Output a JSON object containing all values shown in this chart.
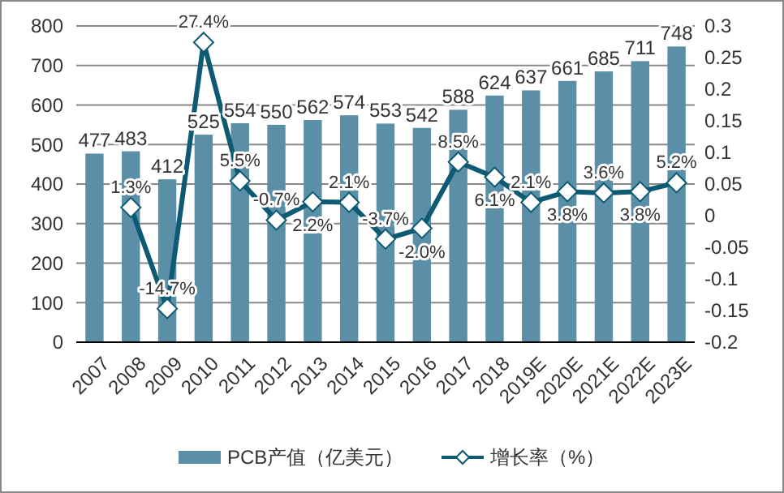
{
  "chart_data": {
    "type": "bar",
    "categories": [
      "2007",
      "2008",
      "2009",
      "2010",
      "2011",
      "2012",
      "2013",
      "2014",
      "2015",
      "2016",
      "2017",
      "2018",
      "2019E",
      "2020E",
      "2021E",
      "2022E",
      "2023E"
    ],
    "series": [
      {
        "name": "PCB产值（亿美元）",
        "color": "#5b8fa8",
        "values": [
          477,
          483,
          412,
          525,
          554,
          550,
          562,
          574,
          553,
          542,
          588,
          624,
          637,
          661,
          685,
          711,
          748
        ],
        "value_labels": [
          "477",
          "483",
          "412",
          "525",
          "554",
          "550",
          "562",
          "574",
          "553",
          "542",
          "588",
          "624",
          "637",
          "661",
          "685",
          "711",
          "748"
        ]
      },
      {
        "name": "增长率（%）",
        "type": "line",
        "axis": "y2",
        "color": "#0e5a73",
        "marker": "diamond",
        "values": [
          null,
          0.013,
          -0.147,
          0.274,
          0.055,
          -0.007,
          0.022,
          0.021,
          -0.037,
          -0.02,
          0.085,
          0.061,
          0.021,
          0.038,
          0.036,
          0.038,
          0.052
        ],
        "value_labels": [
          null,
          "1.3%",
          "-14.7%",
          "27.4%",
          "5.5%",
          "-0.7%",
          "2.2%",
          "2.1%",
          "-3.7%",
          "-2.0%",
          "8.5%",
          "6.1%",
          "2.1%",
          "3.8%",
          "3.6%",
          "3.8%",
          "5.2%"
        ]
      }
    ],
    "ylim": [
      0,
      800
    ],
    "yticks": [
      0,
      100,
      200,
      300,
      400,
      500,
      600,
      700,
      800
    ],
    "y2lim": [
      -0.2,
      0.3
    ],
    "y2ticks": [
      -0.2,
      -0.15,
      -0.1,
      -0.05,
      0,
      0.05,
      0.1,
      0.15,
      0.2,
      0.25,
      0.3
    ],
    "grid": "y",
    "legend": "bottom"
  }
}
